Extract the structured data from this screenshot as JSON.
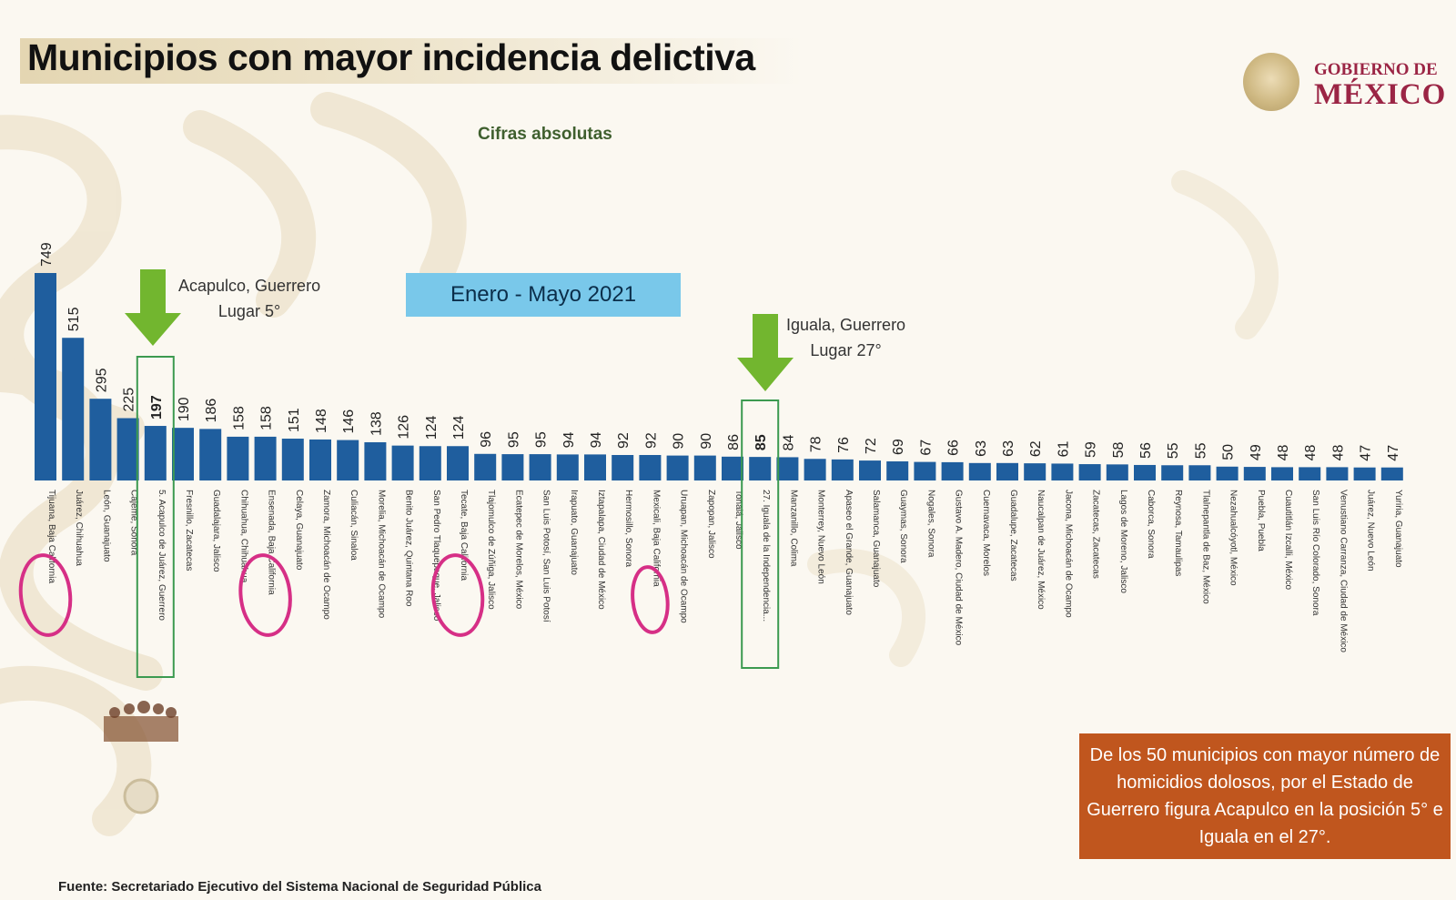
{
  "title": "Municipios con mayor incidencia delictiva",
  "subtitle": "Cifras absolutas",
  "logo": {
    "line1": "GOBIERNO DE",
    "line2": "MÉXICO"
  },
  "period": "Enero - Mayo 2021",
  "callouts": [
    {
      "name": "Acapulco, Guerrero",
      "rank": "Lugar 5°"
    },
    {
      "name": "Iguala, Guerrero",
      "rank": "Lugar 27°"
    }
  ],
  "note": "De los 50 municipios con mayor número de homicidios dolosos, por el Estado de Guerrero figura Acapulco en la posición 5° e Iguala en el 27°.",
  "source": "Fuente: Secretariado Ejecutivo del Sistema Nacional de Seguridad Pública",
  "colors": {
    "bar": "#1f5e9e",
    "arrow": "#72b62f",
    "highlight_box": "#3c9a50",
    "circle": "#d62f86",
    "note_bg": "#c0561e",
    "period_bg": "#79c8ea"
  },
  "chart_data": {
    "type": "bar",
    "title": "Municipios con mayor incidencia delictiva",
    "subtitle": "Cifras absolutas",
    "xlabel": "",
    "ylabel": "",
    "ylim": [
      0,
      749
    ],
    "grid": false,
    "categories": [
      "Tijuana, Baja California",
      "Juárez, Chihuahua",
      "León, Guanajuato",
      "Cajeme, Sonora",
      "5. Acapulco de Juárez, Guerrero",
      "Fresnillo, Zacatecas",
      "Guadalajara, Jalisco",
      "Chihuahua, Chihuahua",
      "Ensenada, Baja California",
      "Celaya, Guanajuato",
      "Zamora, Michoacán de Ocampo",
      "Culiacán, Sinaloa",
      "Morelia, Michoacán de Ocampo",
      "Benito Juárez, Quintana Roo",
      "San Pedro Tlaquepaque, Jalisco",
      "Tecate, Baja California",
      "Tlajomulco de Zúñiga, Jalisco",
      "Ecatepec de Morelos, México",
      "San Luis Potosí, San Luis Potosí",
      "Irapuato, Guanajuato",
      "Iztapalapa, Ciudad de México",
      "Hermosillo, Sonora",
      "Mexicali, Baja California",
      "Uruapan, Michoacán de Ocampo",
      "Zapopan, Jalisco",
      "Tonalá, Jalisco",
      "27. Iguala de la Independencia...",
      "Manzanillo, Colima",
      "Monterrey, Nuevo León",
      "Apaseo el Grande, Guanajuato",
      "Salamanca, Guanajuato",
      "Guaymas, Sonora",
      "Nogales, Sonora",
      "Gustavo A. Madero, Ciudad de México",
      "Cuernavaca, Morelos",
      "Guadalupe, Zacatecas",
      "Naucalpan de Juárez, México",
      "Jacona, Michoacán de Ocampo",
      "Zacatecas, Zacatecas",
      "Lagos de Moreno, Jalisco",
      "Caborca, Sonora",
      "Reynosa, Tamaulipas",
      "Tlalnepantla de Baz, México",
      "Nezahualcóyotl, México",
      "Puebla, Puebla",
      "Cuautitlán Izcalli, México",
      "San Luis Río Colorado, Sonora",
      "Venustiano Carranza, Ciudad de México",
      "Juárez, Nuevo León",
      "Yuriria, Guanajuato"
    ],
    "values": [
      749,
      515,
      295,
      225,
      197,
      190,
      186,
      158,
      158,
      151,
      148,
      146,
      138,
      126,
      124,
      124,
      96,
      95,
      95,
      94,
      94,
      92,
      92,
      90,
      90,
      86,
      85,
      84,
      78,
      76,
      72,
      69,
      67,
      66,
      63,
      63,
      62,
      61,
      59,
      58,
      56,
      55,
      55,
      50,
      49,
      48,
      48,
      48,
      47,
      47
    ],
    "highlighted_indices": [
      4,
      26
    ],
    "circled_indices": [
      0,
      8,
      15,
      22
    ]
  }
}
